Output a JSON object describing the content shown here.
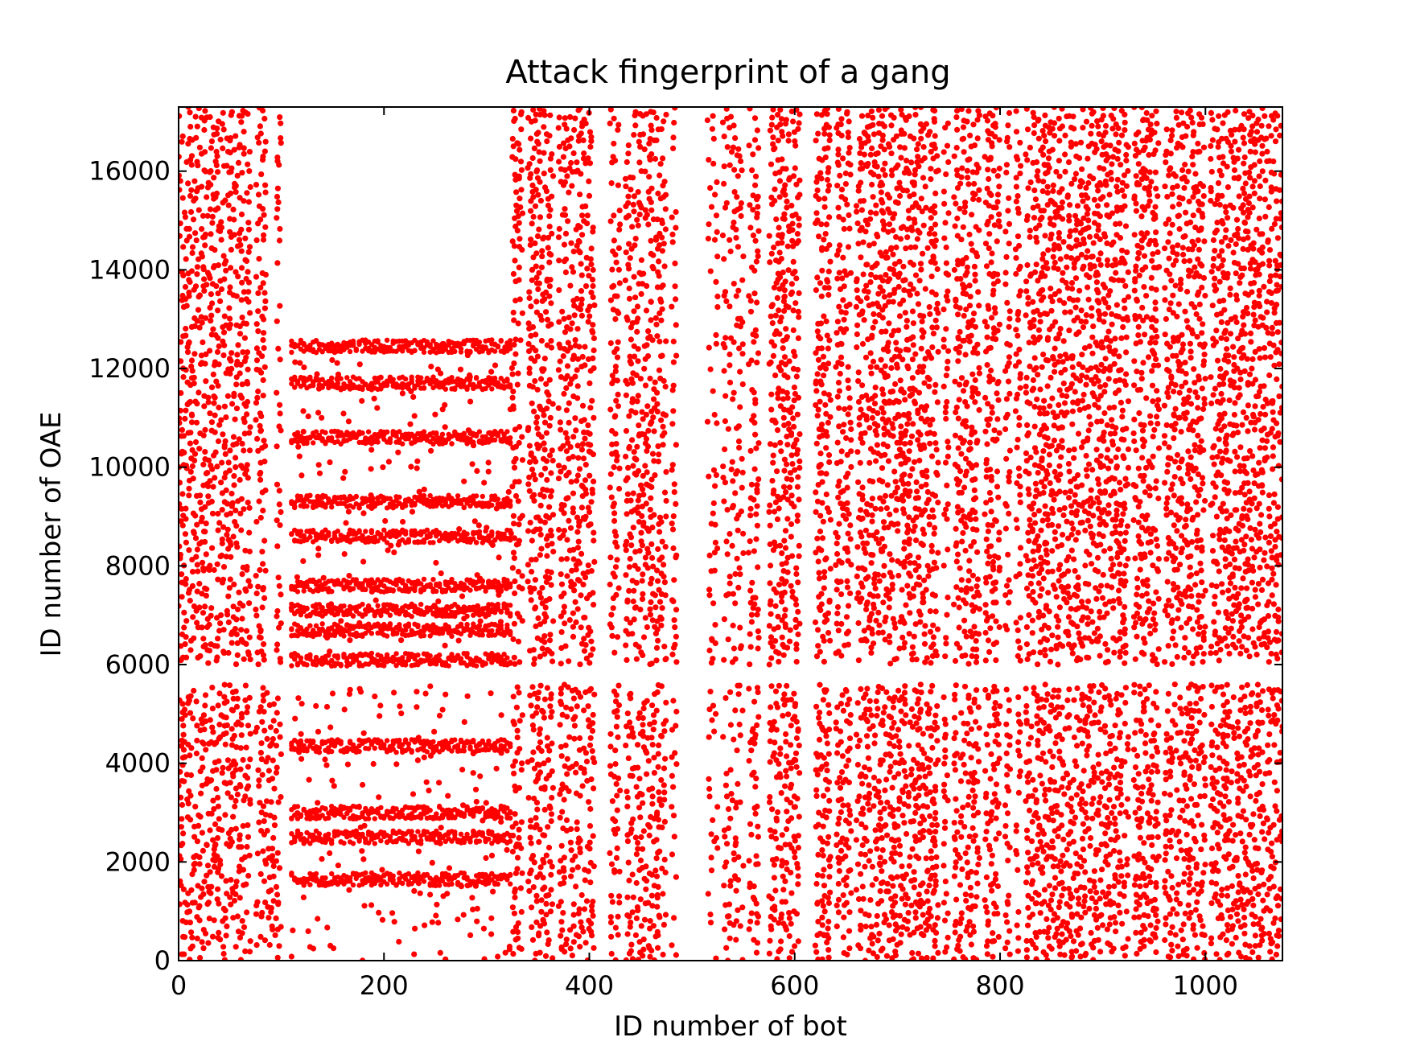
{
  "chart_data": {
    "type": "scatter",
    "title": "Attack fingerprint of a gang",
    "xlabel": "ID number of bot",
    "ylabel": "ID number of OAE",
    "xlim": [
      0,
      1075
    ],
    "ylim": [
      0,
      17300
    ],
    "xticks": [
      0,
      200,
      400,
      600,
      800,
      1000
    ],
    "yticks": [
      0,
      2000,
      4000,
      6000,
      8000,
      10000,
      12000,
      14000,
      16000
    ],
    "xtick_labels": [
      "0",
      "200",
      "400",
      "600",
      "800",
      "1000"
    ],
    "ytick_labels": [
      "0",
      "2000",
      "4000",
      "6000",
      "8000",
      "10000",
      "12000",
      "14000",
      "16000"
    ],
    "grid": false,
    "legend": "none",
    "marker_color": "#ff0000",
    "series": [
      {
        "regions": [
          {
            "x": [
              0,
              110
            ],
            "y": [
              0,
              17300
            ],
            "density": 0.55
          },
          {
            "x": [
              110,
              325
            ],
            "y": [
              0,
              12500
            ],
            "density": 0.08
          },
          {
            "x": [
              325,
              410
            ],
            "y": [
              0,
              17300
            ],
            "density": 0.55
          },
          {
            "x": [
              420,
              510
            ],
            "y": [
              0,
              17300
            ],
            "density": 0.5
          },
          {
            "x": [
              510,
              560
            ],
            "y": [
              0,
              17300
            ],
            "density": 0.35
          },
          {
            "x": [
              560,
              1075
            ],
            "y": [
              0,
              17300
            ],
            "density": 0.58
          }
        ],
        "horizontal_bands": [
          {
            "x": [
              110,
              325
            ],
            "y": 1650
          },
          {
            "x": [
              110,
              325
            ],
            "y": 2500
          },
          {
            "x": [
              110,
              325
            ],
            "y": 3000
          },
          {
            "x": [
              110,
              325
            ],
            "y": 4350
          },
          {
            "x": [
              110,
              325
            ],
            "y": 6100
          },
          {
            "x": [
              110,
              325
            ],
            "y": 6700
          },
          {
            "x": [
              110,
              325
            ],
            "y": 7100
          },
          {
            "x": [
              110,
              325
            ],
            "y": 7600
          },
          {
            "x": [
              110,
              325
            ],
            "y": 8600
          },
          {
            "x": [
              110,
              325
            ],
            "y": 9300
          },
          {
            "x": [
              110,
              325
            ],
            "y": 10600
          },
          {
            "x": [
              110,
              325
            ],
            "y": 11700
          },
          {
            "x": [
              110,
              325
            ],
            "y": 12450
          }
        ],
        "vertical_gaps": [
          {
            "x": [
              495,
              515
            ],
            "y": [
              0,
              17300
            ]
          },
          {
            "x": [
              85,
              95
            ],
            "y": [
              6000,
              17300
            ]
          }
        ],
        "horizontal_gaps": [
          {
            "x": [
              0,
              1075
            ],
            "y": [
              5600,
              6000
            ]
          }
        ]
      }
    ]
  }
}
